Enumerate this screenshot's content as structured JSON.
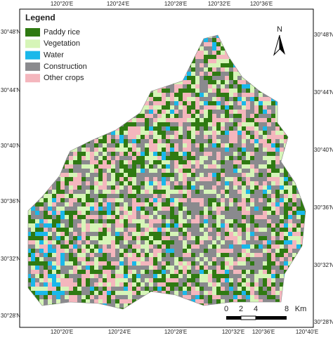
{
  "legend": {
    "title": "Legend",
    "items": [
      {
        "label": "Paddy rice",
        "color": "#2f7a12"
      },
      {
        "label": "Vegetation",
        "color": "#d6f5b8"
      },
      {
        "label": "Water",
        "color": "#1ab8ea"
      },
      {
        "label": "Construction",
        "color": "#8a8a8e"
      },
      {
        "label": "Other crops",
        "color": "#f4b6bd"
      }
    ]
  },
  "graticule": {
    "top": [
      "120°20'E",
      "120°24'E",
      "120°28'E",
      "120°32'E",
      "120°36'E"
    ],
    "bottom": [
      "120°20'E",
      "120°24'E",
      "120°28'E",
      "120°32'E",
      "120°36'E",
      "120°40'E"
    ],
    "left": [
      "30°48'N",
      "30°44'N",
      "30°40'N",
      "30°36'N",
      "30°32'N",
      "30°28'N"
    ],
    "right": [
      "30°48'N",
      "30°44'N",
      "30°40'N",
      "30°36'N",
      "30°32'N",
      "30°28'N"
    ]
  },
  "north_arrow": {
    "label": "N"
  },
  "scale_bar": {
    "labels": [
      "0",
      "2",
      "4",
      "8"
    ],
    "unit": "Km"
  }
}
